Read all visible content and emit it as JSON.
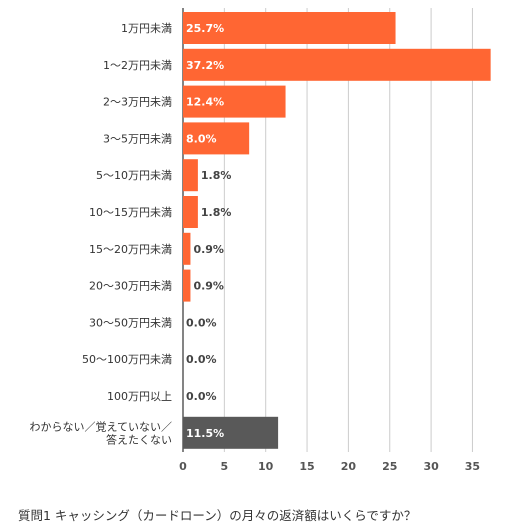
{
  "caption": "質問1 キャッシング（カードローン）の月々の返済額はいくらですか？",
  "chart_data": {
    "type": "bar",
    "orientation": "horizontal",
    "categories": [
      [
        "1万円未満"
      ],
      [
        "1〜2万円未満"
      ],
      [
        "2〜3万円未満"
      ],
      [
        "3〜5万円未満"
      ],
      [
        "5〜10万円未満"
      ],
      [
        "10〜15万円未満"
      ],
      [
        "15〜20万円未満"
      ],
      [
        "20〜30万円未満"
      ],
      [
        "30〜50万円未満"
      ],
      [
        "50〜100万円未満"
      ],
      [
        "100万円以上"
      ],
      [
        "わからない／覚えていない／",
        "答えたくない"
      ]
    ],
    "values": [
      25.7,
      37.2,
      12.4,
      8.0,
      1.8,
      1.8,
      0.9,
      0.9,
      0.0,
      0.0,
      0.0,
      11.5
    ],
    "data_labels": [
      "25.7%",
      "37.2%",
      "12.4%",
      "8.0%",
      "1.8%",
      "1.8%",
      "0.9%",
      "0.9%",
      "0.0%",
      "0.0%",
      "0.0%",
      "11.5%"
    ],
    "colors": [
      "#ff6633",
      "#ff6633",
      "#ff6633",
      "#ff6633",
      "#ff6633",
      "#ff6633",
      "#ff6633",
      "#ff6633",
      "#ff6633",
      "#ff6633",
      "#ff6633",
      "#595959"
    ],
    "xticks": [
      0,
      5,
      10,
      15,
      20,
      25,
      30,
      35
    ],
    "xlim": [
      0,
      38
    ],
    "grid": true
  }
}
